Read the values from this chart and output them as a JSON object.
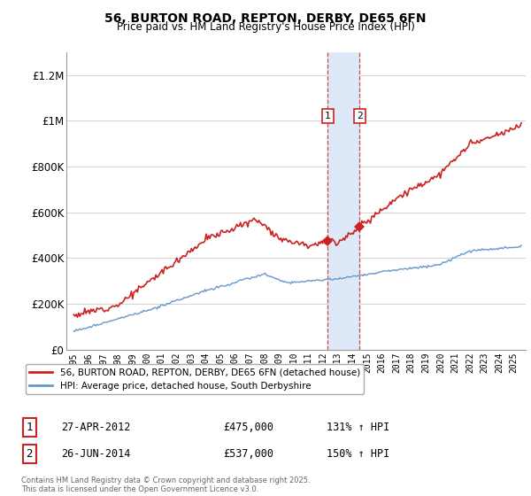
{
  "title": "56, BURTON ROAD, REPTON, DERBY, DE65 6FN",
  "subtitle": "Price paid vs. HM Land Registry's House Price Index (HPI)",
  "ylabel_ticks": [
    "£0",
    "£200K",
    "£400K",
    "£600K",
    "£800K",
    "£1M",
    "£1.2M"
  ],
  "ytick_vals": [
    0,
    200000,
    400000,
    600000,
    800000,
    1000000,
    1200000
  ],
  "ylim": [
    0,
    1300000
  ],
  "xlim_start": 1994.5,
  "xlim_end": 2025.8,
  "line1_color": "#cc2222",
  "line2_color": "#6699cc",
  "marker_color": "#cc2222",
  "vline_color": "#cc2222",
  "vband_color": "#dde8f8",
  "transaction1": {
    "label": "1",
    "year": 2012.32,
    "price": 475000,
    "date": "27-APR-2012",
    "pct": "131%",
    "dir": "↑"
  },
  "transaction2": {
    "label": "2",
    "year": 2014.49,
    "price": 537000,
    "date": "26-JUN-2014",
    "pct": "150%",
    "dir": "↑"
  },
  "legend_line1": "56, BURTON ROAD, REPTON, DERBY, DE65 6FN (detached house)",
  "legend_line2": "HPI: Average price, detached house, South Derbyshire",
  "footer": "Contains HM Land Registry data © Crown copyright and database right 2025.\nThis data is licensed under the Open Government Licence v3.0.",
  "background_color": "#ffffff",
  "grid_color": "#cccccc"
}
